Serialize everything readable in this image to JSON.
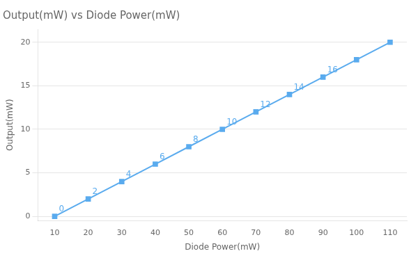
{
  "chart_data": {
    "type": "line",
    "title": "Output(mW) vs Diode Power(mW)",
    "xlabel": "Diode Power(mW)",
    "ylabel": "Output(mW)",
    "x": [
      10,
      20,
      30,
      40,
      50,
      60,
      70,
      80,
      90,
      100,
      110
    ],
    "values": [
      0,
      2,
      4,
      6,
      8,
      10,
      12,
      14,
      16,
      18,
      20
    ],
    "value_labels": [
      "0",
      "2",
      "4",
      "6",
      "8",
      "10",
      "12",
      "14",
      "16",
      null,
      null
    ],
    "data_labels": true,
    "color": "#5aabee",
    "marker": "square",
    "xlim": [
      5,
      115
    ],
    "ylim": [
      -0.5,
      21.5
    ],
    "xticks": [
      10,
      20,
      30,
      40,
      50,
      60,
      70,
      80,
      90,
      100,
      110
    ],
    "yticks": [
      0,
      5,
      10,
      15,
      20
    ],
    "grid": "y"
  }
}
